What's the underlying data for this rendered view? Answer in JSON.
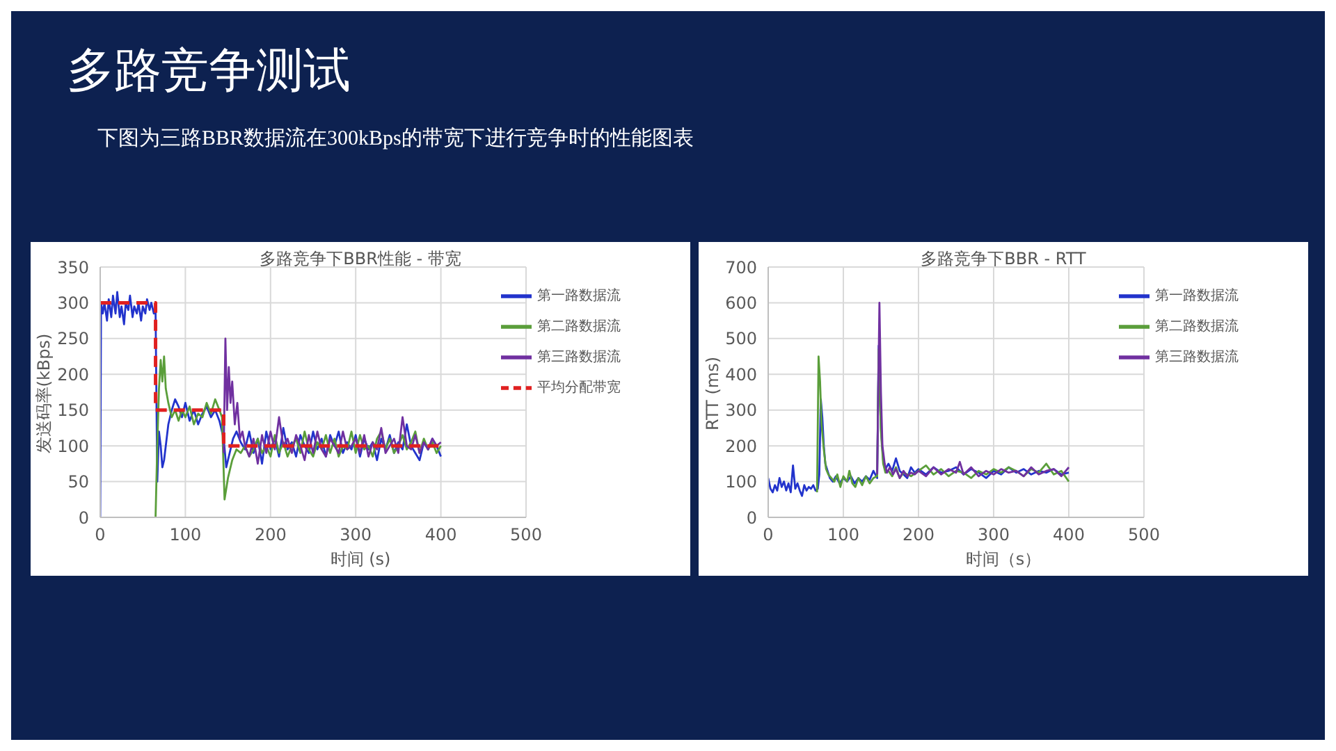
{
  "chart_data": [
    {
      "type": "other",
      "title": "多路竞争测试",
      "subtitle": "下图为三路BBR数据流在300kBps的带宽下进行竞争时的性能图表"
    },
    {
      "type": "line",
      "title": "多路竞争下BBR性能 - 带宽",
      "xlabel": "时间 (s)",
      "ylabel": "发送码率(kBps)",
      "xlim": [
        0,
        500
      ],
      "xticks": [
        0,
        100,
        200,
        300,
        400,
        500
      ],
      "ylim": [
        0,
        350
      ],
      "yticks": [
        0,
        50,
        100,
        150,
        200,
        250,
        300,
        350
      ],
      "grid": true,
      "legend": "top right",
      "marker": "none",
      "series": [
        {
          "name": "第一路数据流",
          "color": "#2233cc",
          "x": [
            0,
            1,
            3,
            5,
            8,
            10,
            13,
            15,
            18,
            20,
            23,
            25,
            28,
            30,
            33,
            35,
            38,
            40,
            43,
            45,
            48,
            50,
            53,
            55,
            58,
            60,
            63,
            65,
            67,
            69,
            71,
            73,
            75,
            78,
            80,
            84,
            88,
            92,
            96,
            100,
            105,
            110,
            115,
            120,
            125,
            130,
            135,
            140,
            143,
            145,
            148,
            152,
            156,
            160,
            165,
            170,
            175,
            180,
            185,
            190,
            195,
            200,
            205,
            210,
            215,
            220,
            225,
            230,
            235,
            240,
            245,
            250,
            255,
            260,
            265,
            270,
            275,
            280,
            285,
            290,
            295,
            300,
            305,
            310,
            315,
            320,
            325,
            330,
            335,
            340,
            345,
            350,
            355,
            360,
            365,
            370,
            375,
            380,
            385,
            390,
            395,
            400
          ],
          "values": [
            0,
            300,
            285,
            300,
            275,
            305,
            280,
            310,
            285,
            315,
            280,
            295,
            270,
            300,
            290,
            310,
            280,
            295,
            285,
            300,
            275,
            295,
            285,
            305,
            290,
            300,
            285,
            290,
            50,
            120,
            100,
            70,
            80,
            110,
            130,
            150,
            165,
            155,
            140,
            160,
            135,
            150,
            130,
            145,
            155,
            140,
            150,
            135,
            120,
            110,
            70,
            90,
            110,
            120,
            105,
            95,
            120,
            90,
            110,
            75,
            120,
            95,
            110,
            85,
            125,
            95,
            105,
            85,
            115,
            100,
            90,
            120,
            95,
            110,
            85,
            115,
            100,
            120,
            90,
            105,
            95,
            115,
            85,
            110,
            95,
            105,
            80,
            110,
            95,
            115,
            90,
            105,
            95,
            130,
            100,
            90,
            80,
            105,
            95,
            110,
            100,
            85
          ]
        },
        {
          "name": "第二路数据流",
          "color": "#5a9e3a",
          "x": [
            65,
            67,
            69,
            71,
            73,
            75,
            77,
            80,
            84,
            88,
            92,
            96,
            100,
            105,
            110,
            115,
            120,
            125,
            130,
            135,
            140,
            143,
            146,
            150,
            155,
            160,
            165,
            170,
            175,
            180,
            185,
            190,
            195,
            200,
            205,
            210,
            215,
            220,
            225,
            230,
            235,
            240,
            245,
            250,
            255,
            260,
            265,
            270,
            275,
            280,
            285,
            290,
            295,
            300,
            305,
            310,
            315,
            320,
            325,
            330,
            335,
            340,
            345,
            350,
            355,
            360,
            365,
            370,
            375,
            380,
            385,
            390,
            395,
            400
          ],
          "values": [
            0,
            100,
            180,
            220,
            190,
            225,
            180,
            160,
            140,
            150,
            135,
            150,
            140,
            155,
            130,
            145,
            140,
            160,
            145,
            165,
            150,
            140,
            25,
            55,
            80,
            95,
            90,
            100,
            85,
            95,
            110,
            90,
            100,
            85,
            115,
            90,
            105,
            85,
            100,
            110,
            90,
            120,
            95,
            85,
            105,
            95,
            115,
            90,
            110,
            85,
            100,
            95,
            120,
            90,
            115,
            95,
            100,
            85,
            110,
            120,
            95,
            110,
            90,
            100,
            115,
            95,
            105,
            120,
            90,
            110,
            95,
            105,
            90,
            100
          ]
        },
        {
          "name": "第三路数据流",
          "color": "#7030a0",
          "x": [
            145,
            147,
            149,
            151,
            153,
            155,
            158,
            161,
            164,
            167,
            170,
            175,
            180,
            185,
            190,
            195,
            200,
            205,
            210,
            215,
            220,
            225,
            230,
            235,
            240,
            245,
            250,
            255,
            260,
            265,
            270,
            275,
            280,
            285,
            290,
            295,
            300,
            305,
            310,
            315,
            320,
            325,
            330,
            335,
            340,
            345,
            350,
            355,
            360,
            365,
            370,
            375,
            380,
            385,
            390,
            395,
            400
          ],
          "values": [
            90,
            250,
            150,
            210,
            160,
            190,
            130,
            160,
            110,
            120,
            100,
            85,
            110,
            75,
            115,
            90,
            120,
            95,
            140,
            100,
            110,
            90,
            115,
            100,
            80,
            115,
            90,
            120,
            95,
            85,
            110,
            100,
            90,
            120,
            95,
            100,
            110,
            90,
            115,
            85,
            105,
            95,
            125,
            90,
            100,
            110,
            90,
            140,
            100,
            95,
            115,
            90,
            105,
            95,
            110,
            100,
            105
          ]
        },
        {
          "name": "平均分配带宽",
          "color": "#e02020",
          "line_style": "dashed",
          "x": [
            0,
            65,
            65,
            145,
            145,
            400
          ],
          "values": [
            300,
            300,
            150,
            150,
            100,
            100
          ]
        }
      ]
    },
    {
      "type": "line",
      "title": "多路竞争下BBR  - RTT",
      "xlabel": "时间（s）",
      "ylabel": "RTT (ms)",
      "xlim": [
        0,
        500
      ],
      "xticks": [
        0,
        100,
        200,
        300,
        400,
        500
      ],
      "ylim": [
        0,
        700
      ],
      "yticks": [
        0,
        100,
        200,
        300,
        400,
        500,
        600,
        700
      ],
      "grid": true,
      "legend": "top right",
      "marker": "none",
      "series": [
        {
          "name": "第一路数据流",
          "color": "#2233cc",
          "x": [
            0,
            3,
            6,
            9,
            12,
            15,
            18,
            21,
            24,
            27,
            30,
            33,
            36,
            39,
            42,
            45,
            48,
            51,
            54,
            57,
            60,
            63,
            66,
            68,
            70,
            72,
            74,
            76,
            79,
            82,
            86,
            90,
            95,
            100,
            105,
            110,
            115,
            120,
            125,
            130,
            135,
            140,
            145,
            147,
            150,
            153,
            156,
            160,
            165,
            170,
            175,
            180,
            185,
            190,
            195,
            200,
            210,
            220,
            230,
            240,
            250,
            260,
            270,
            280,
            290,
            300,
            310,
            320,
            330,
            340,
            350,
            360,
            370,
            380,
            390,
            400
          ],
          "values": [
            110,
            80,
            70,
            90,
            75,
            110,
            85,
            100,
            75,
            95,
            70,
            145,
            80,
            95,
            75,
            60,
            90,
            75,
            85,
            80,
            90,
            75,
            80,
            120,
            330,
            280,
            200,
            150,
            130,
            110,
            100,
            115,
            95,
            110,
            100,
            115,
            95,
            110,
            100,
            115,
            105,
            130,
            110,
            480,
            250,
            160,
            135,
            150,
            130,
            165,
            130,
            120,
            110,
            140,
            125,
            135,
            120,
            140,
            125,
            130,
            140,
            120,
            135,
            125,
            110,
            130,
            120,
            140,
            125,
            135,
            120,
            130,
            125,
            135,
            120,
            125
          ]
        },
        {
          "name": "第二路数据流",
          "color": "#5a9e3a",
          "x": [
            65,
            67,
            69,
            71,
            74,
            77,
            80,
            84,
            88,
            92,
            96,
            100,
            105,
            108,
            112,
            116,
            120,
            125,
            130,
            135,
            140,
            145,
            147,
            150,
            153,
            156,
            160,
            165,
            170,
            175,
            180,
            190,
            200,
            210,
            220,
            230,
            240,
            250,
            260,
            270,
            280,
            290,
            300,
            310,
            320,
            330,
            340,
            350,
            360,
            370,
            380,
            390,
            400
          ],
          "values": [
            70,
            450,
            380,
            260,
            190,
            135,
            120,
            110,
            100,
            120,
            85,
            115,
            100,
            130,
            95,
            85,
            110,
            90,
            115,
            95,
            110,
            115,
            470,
            240,
            150,
            125,
            130,
            115,
            140,
            110,
            125,
            115,
            130,
            145,
            120,
            135,
            115,
            130,
            125,
            110,
            130,
            120,
            135,
            125,
            140,
            130,
            115,
            135,
            125,
            150,
            120,
            130,
            100
          ]
        },
        {
          "name": "第三路数据流",
          "color": "#7030a0",
          "x": [
            145,
            148,
            150,
            152,
            155,
            158,
            162,
            166,
            170,
            175,
            180,
            185,
            190,
            195,
            200,
            210,
            220,
            230,
            240,
            250,
            255,
            260,
            270,
            280,
            290,
            300,
            310,
            320,
            330,
            340,
            350,
            360,
            370,
            380,
            390,
            400
          ],
          "values": [
            120,
            600,
            350,
            200,
            150,
            125,
            140,
            120,
            135,
            110,
            130,
            115,
            125,
            120,
            130,
            115,
            140,
            120,
            135,
            125,
            155,
            120,
            140,
            115,
            130,
            120,
            135,
            125,
            130,
            115,
            140,
            120,
            130,
            135,
            115,
            140
          ]
        }
      ]
    }
  ]
}
